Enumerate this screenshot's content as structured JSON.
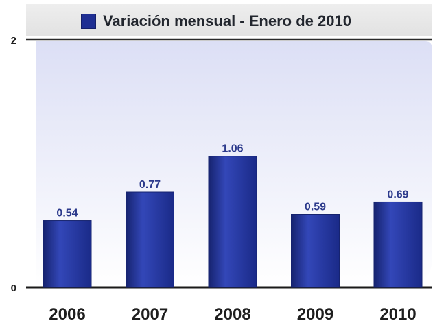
{
  "chart_data": {
    "type": "bar",
    "categories": [
      "2006",
      "2007",
      "2008",
      "2009",
      "2010"
    ],
    "series": [
      {
        "name": "Variación mensual - Enero de 2010",
        "values": [
          0.54,
          0.77,
          1.06,
          0.59,
          0.69
        ]
      }
    ],
    "data_labels": [
      "0.54",
      "0.77",
      "1.06",
      "0.59",
      "0.69"
    ],
    "y_ticks": [
      "0",
      "2"
    ],
    "ylim": [
      0,
      2
    ],
    "grid": false,
    "legend_position": "top",
    "colors": {
      "bar": "#1f2f93",
      "bar_light": "#3347b8",
      "bar_dark": "#16236f",
      "label": "#2c3a8c",
      "plot_bg_top": "#dcdff5",
      "plot_bg_bottom": "#ffffff"
    }
  },
  "legend": {
    "label": "Variación mensual - Enero de 2010"
  }
}
